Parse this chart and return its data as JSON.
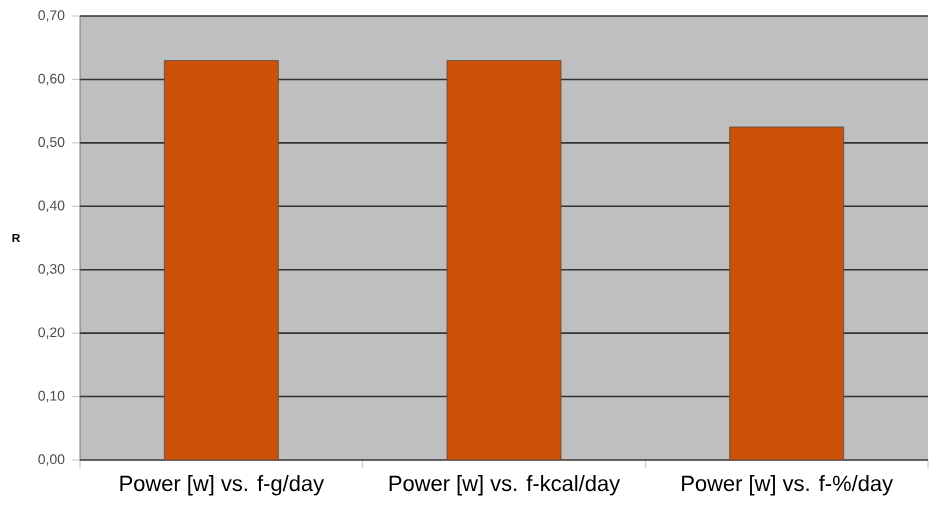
{
  "chart_data": {
    "type": "bar",
    "ylabel": "R",
    "categories": [
      "Power [w] vs. f-g/day",
      "Power [w] vs. f-kcal/day",
      "Power [w] vs. f-%/day"
    ],
    "values": [
      0.63,
      0.63,
      0.525
    ],
    "color": "#cc5208",
    "ylim": [
      0,
      0.7
    ],
    "yticks": [
      {
        "value": 0,
        "label": "0,00"
      },
      {
        "value": 0.1,
        "label": "0,10"
      },
      {
        "value": 0.2,
        "label": "0,20"
      },
      {
        "value": 0.3,
        "label": "0,30"
      },
      {
        "value": 0.4,
        "label": "0,40"
      },
      {
        "value": 0.5,
        "label": "0,50"
      },
      {
        "value": 0.6,
        "label": "0,60"
      },
      {
        "value": 0.7,
        "label": "0,70"
      }
    ],
    "grid": "y"
  }
}
